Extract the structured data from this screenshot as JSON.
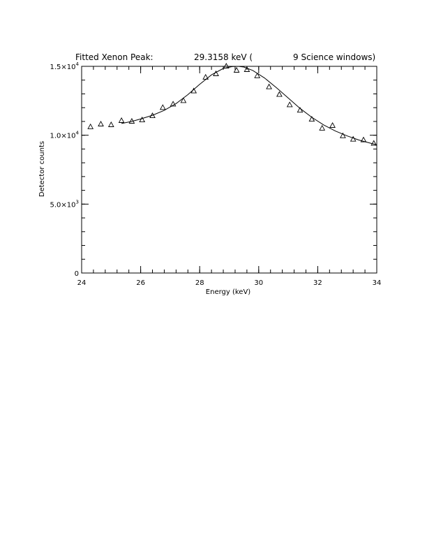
{
  "chart_data": {
    "type": "scatter",
    "title": {
      "prefix": "Fitted Xenon Peak:",
      "value": "29.3158 keV (",
      "suffix": "9 Science windows)"
    },
    "xlabel": "Energy (keV)",
    "ylabel": "Detector counts",
    "xlim": [
      24,
      34
    ],
    "ylim": [
      0,
      15000
    ],
    "x_ticks": [
      24,
      26,
      28,
      30,
      32,
      34
    ],
    "x_tick_labels": [
      "24",
      "26",
      "28",
      "30",
      "32",
      "34"
    ],
    "x_minor_step": 0.4,
    "y_ticks": [
      0,
      5000,
      10000,
      15000
    ],
    "y_tick_labels": [
      {
        "text": "0",
        "mant": "",
        "exp": ""
      },
      {
        "text": "",
        "mant": "5.0×10",
        "exp": "3"
      },
      {
        "text": "",
        "mant": "1.0×10",
        "exp": "4"
      },
      {
        "text": "",
        "mant": "1.5×10",
        "exp": "4"
      }
    ],
    "y_minor_step": 1000,
    "grid": false,
    "series": [
      {
        "kind": "points",
        "marker": "triangle",
        "x": [
          24.3,
          24.65,
          25.0,
          25.35,
          25.7,
          26.05,
          26.4,
          26.75,
          27.1,
          27.45,
          27.8,
          28.2,
          28.55,
          28.9,
          29.25,
          29.6,
          29.95,
          30.35,
          30.7,
          31.05,
          31.4,
          31.8,
          32.15,
          32.5,
          32.85,
          33.2,
          33.55,
          33.9
        ],
        "y": [
          10600,
          10800,
          10750,
          11050,
          11000,
          11100,
          11400,
          12000,
          12250,
          12500,
          13200,
          14200,
          14450,
          15000,
          14700,
          14750,
          14300,
          13500,
          12950,
          12200,
          11800,
          11150,
          10500,
          10700,
          9950,
          9700,
          9650,
          9400
        ]
      },
      {
        "kind": "line",
        "x": [
          25.35,
          25.7,
          26.0,
          26.4,
          26.8,
          27.2,
          27.6,
          28.0,
          28.4,
          28.8,
          29.1,
          29.3,
          29.5,
          29.8,
          30.2,
          30.6,
          31.0,
          31.4,
          31.8,
          32.2,
          32.6,
          33.0,
          33.4,
          34.0
        ],
        "y": [
          10850,
          11000,
          11180,
          11450,
          11800,
          12300,
          12950,
          13700,
          14380,
          14850,
          14980,
          15000,
          14950,
          14700,
          14150,
          13450,
          12700,
          11950,
          11300,
          10750,
          10300,
          9950,
          9650,
          9300
        ]
      }
    ]
  }
}
